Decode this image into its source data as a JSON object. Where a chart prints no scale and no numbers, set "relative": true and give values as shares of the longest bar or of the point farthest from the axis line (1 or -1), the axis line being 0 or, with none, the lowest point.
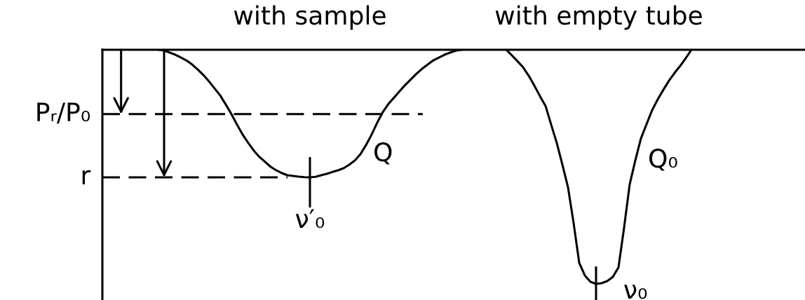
{
  "chart_data": {
    "type": "line",
    "relative": true,
    "legend": false,
    "tick_labels": false,
    "categories": [
      null,
      null,
      null,
      null,
      null,
      null,
      null,
      null,
      null,
      null,
      null,
      null,
      null,
      null,
      null,
      null,
      null,
      null,
      null,
      null,
      null,
      null,
      null,
      null,
      null,
      null,
      null,
      null,
      null,
      null,
      null,
      null,
      null,
      null,
      null,
      null,
      null,
      null,
      null,
      null,
      null,
      null,
      null,
      null,
      null,
      null,
      null,
      null,
      null,
      null,
      null,
      null,
      null,
      null,
      null,
      null,
      null,
      null,
      null,
      null,
      null,
      null,
      null,
      null,
      null,
      null,
      null,
      null,
      null,
      null,
      null,
      null,
      null,
      null,
      null,
      null,
      null,
      null,
      null,
      null,
      null,
      null,
      null,
      null,
      null,
      null,
      null,
      null,
      null,
      null,
      null,
      null,
      null,
      null,
      null,
      null,
      null,
      null,
      null,
      null,
      null,
      null,
      null,
      null,
      null,
      null,
      null,
      null,
      null,
      null,
      null,
      null,
      null,
      null,
      null,
      null,
      null,
      null,
      null,
      null,
      null,
      null,
      null,
      null,
      null,
      null
    ],
    "series": [
      {
        "name": "Q",
        "color": "#000000",
        "values": [
          null,
          null,
          null,
          null,
          null,
          null,
          null,
          null,
          null,
          null,
          0,
          -0.003,
          -0.012,
          -0.021,
          -0.033,
          -0.046,
          -0.063,
          -0.084,
          -0.108,
          -0.135,
          -0.165,
          -0.195,
          -0.234,
          -0.275,
          -0.32,
          -0.362,
          -0.398,
          -0.431,
          -0.458,
          -0.479,
          -0.5,
          -0.515,
          -0.527,
          -0.536,
          -0.539,
          -0.542,
          -0.544,
          -0.545,
          -0.543,
          -0.536,
          -0.53,
          -0.522,
          -0.515,
          -0.506,
          -0.491,
          -0.473,
          -0.446,
          -0.407,
          -0.362,
          -0.311,
          -0.266,
          -0.231,
          -0.204,
          -0.177,
          -0.15,
          -0.126,
          -0.102,
          -0.081,
          -0.063,
          -0.045,
          -0.033,
          -0.021,
          -0.012,
          -0.004,
          0,
          null,
          null,
          null,
          null,
          null,
          null,
          null,
          null,
          null,
          null,
          null,
          null,
          null,
          null,
          null,
          null,
          null,
          null,
          null,
          null,
          null,
          null,
          null,
          null,
          null,
          null,
          null,
          null,
          null,
          null,
          null,
          null,
          null,
          null,
          null,
          null,
          null,
          null,
          null,
          null,
          null,
          null,
          null,
          null,
          null,
          null,
          null,
          null,
          null,
          null,
          null,
          null,
          null,
          null,
          null,
          null,
          null,
          null,
          null,
          null,
          null
        ]
      },
      {
        "name": "Q₀",
        "color": "#000000",
        "values": [
          null,
          null,
          null,
          null,
          null,
          null,
          null,
          null,
          null,
          null,
          null,
          null,
          null,
          null,
          null,
          null,
          null,
          null,
          null,
          null,
          null,
          null,
          null,
          null,
          null,
          null,
          null,
          null,
          null,
          null,
          null,
          null,
          null,
          null,
          null,
          null,
          null,
          null,
          null,
          null,
          null,
          null,
          null,
          null,
          null,
          null,
          null,
          null,
          null,
          null,
          null,
          null,
          null,
          null,
          null,
          null,
          null,
          null,
          null,
          null,
          null,
          null,
          null,
          null,
          null,
          null,
          null,
          null,
          null,
          null,
          null,
          null,
          0,
          -0.024,
          -0.049,
          -0.075,
          -0.111,
          -0.153,
          -0.198,
          -0.24,
          -0.32,
          -0.398,
          -0.491,
          -0.587,
          -0.74,
          -0.91,
          -0.964,
          -0.991,
          -1,
          -0.997,
          -0.988,
          -0.97,
          -0.93,
          -0.76,
          -0.575,
          -0.473,
          -0.379,
          -0.318,
          -0.258,
          -0.212,
          -0.171,
          -0.132,
          -0.099,
          -0.069,
          -0.036,
          0,
          null,
          null,
          null,
          null,
          null,
          null,
          null,
          null,
          null,
          null,
          null,
          null,
          null,
          null,
          null,
          null,
          null,
          null,
          null,
          null
        ]
      }
    ],
    "ref_lines": [
      {
        "axis": "y",
        "value": -0.275,
        "label": "Pᵣ/P₀",
        "line_style": "dashed",
        "color": "#000000"
      },
      {
        "axis": "y",
        "value": -0.545,
        "label": "r",
        "line_style": "dashed",
        "color": "#000000"
      }
    ],
    "annotations": [
      "with sample",
      "with empty tube",
      "ν′₀",
      "ν₀"
    ]
  }
}
